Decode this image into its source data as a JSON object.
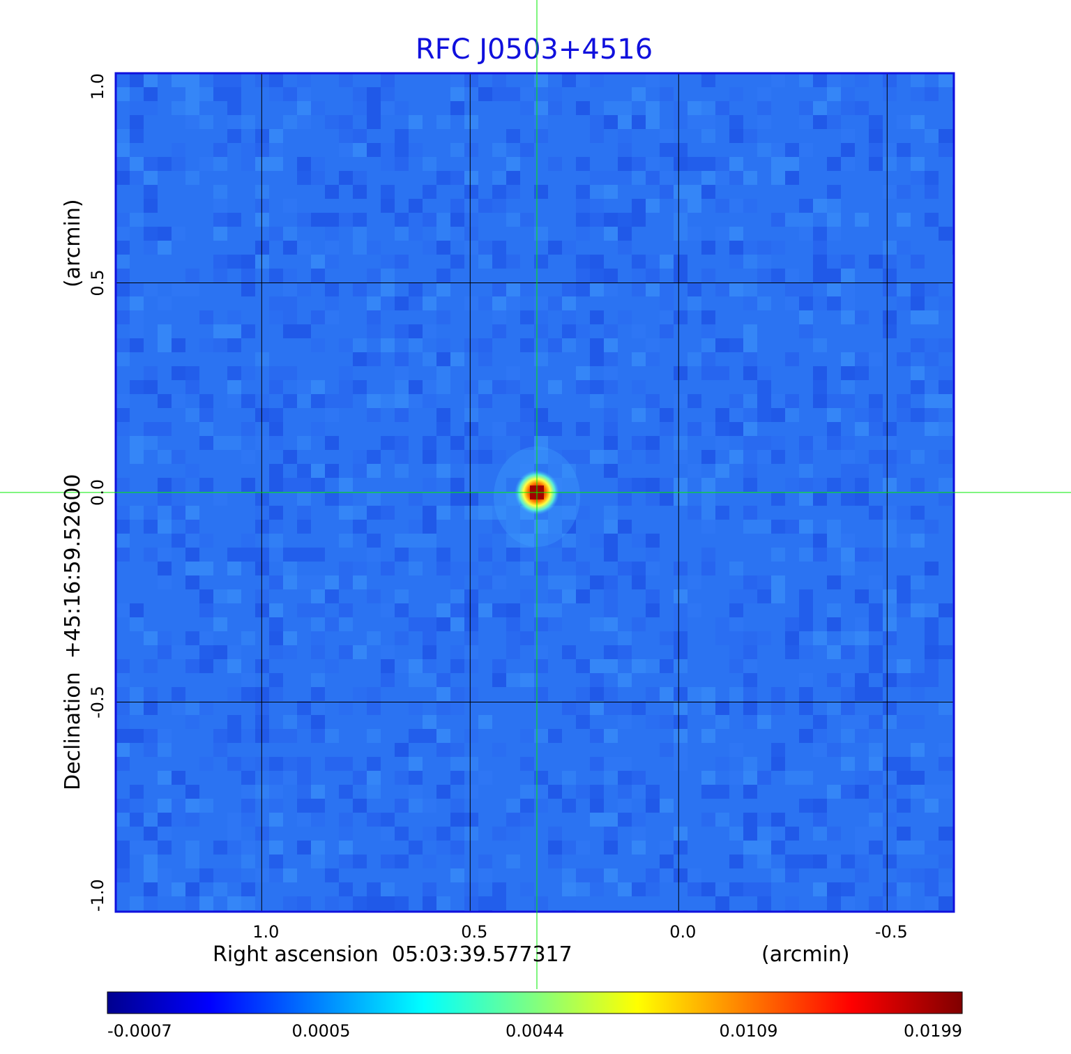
{
  "chart_data": {
    "type": "heatmap",
    "title": "RFC J0503+4516",
    "xlabel": "Right ascension  05:03:39.577317",
    "xunit": "(arcmin)",
    "ylabel": "Declination  +45:16:59.52600",
    "yunit": "(arcmin)",
    "xlim": [
      1.35,
      -0.66
    ],
    "ylim": [
      -1.0,
      1.0
    ],
    "x_ticks": [
      1.0,
      0.5,
      0.0,
      -0.5
    ],
    "x_tick_labels": [
      "1.0",
      "0.5",
      "0.0",
      "-0.5"
    ],
    "y_ticks": [
      -1.0,
      -0.5,
      0.0,
      0.5,
      1.0
    ],
    "y_tick_labels": [
      "-1.0",
      "-0.5",
      "0.0",
      "0.5",
      "1.0"
    ],
    "grid": true,
    "crosshair": [
      0.34,
      0.0
    ],
    "source": {
      "x": 0.34,
      "y": 0.0,
      "peak": 0.0199
    },
    "colorbar": {
      "orientation": "horizontal",
      "colormap": "jet",
      "tick_labels": [
        "-0.0007",
        "0.0005",
        "0.0044",
        "0.0109",
        "0.0199"
      ]
    },
    "colors": {
      "title": "#1010dd",
      "grid": "#000000",
      "crosshair": "#00ee00",
      "frame": "#1010dd"
    }
  }
}
